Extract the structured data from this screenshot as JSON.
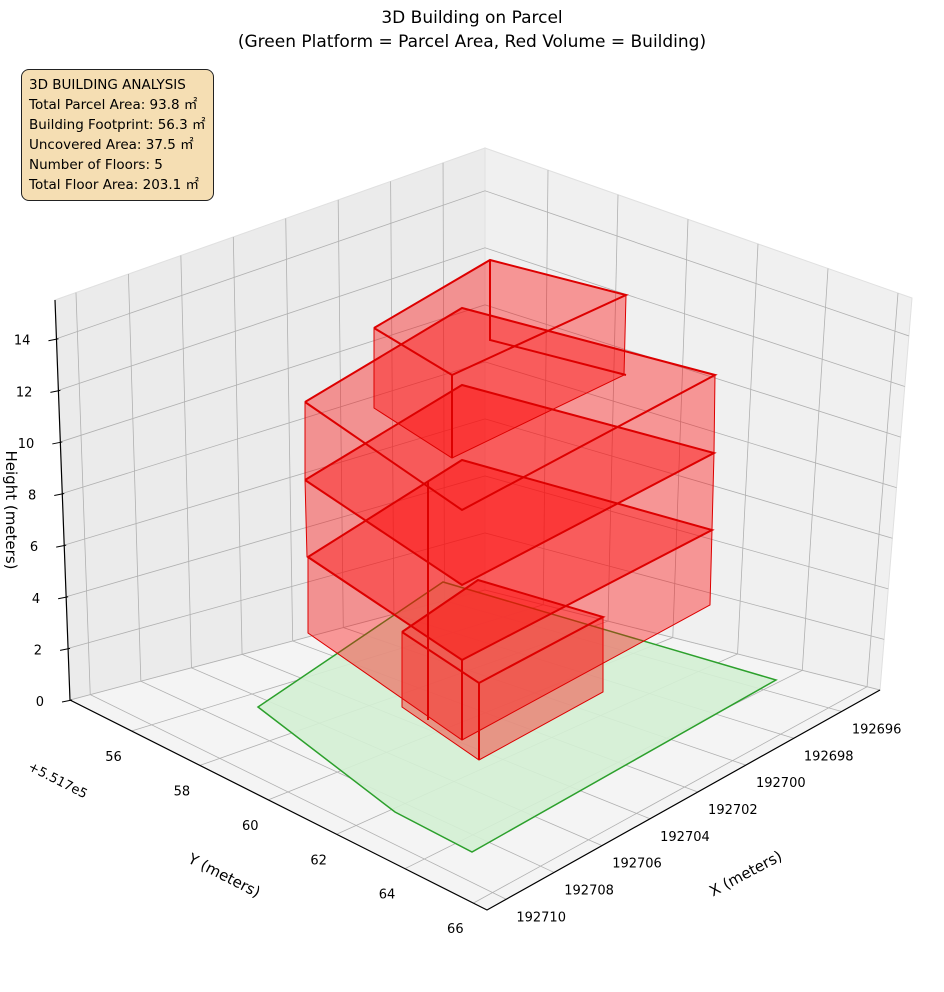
{
  "chart_data": {
    "type": "3d-polygon",
    "title": "3D Building on Parcel",
    "subtitle": "(Green Platform = Parcel Area, Red Volume = Building)",
    "xlabel": "X (meters)",
    "ylabel": "Y (meters)",
    "zlabel": "Height (meters)",
    "y_offset_label": "+5.517e5",
    "x_ticks": [
      "192696",
      "192698",
      "192700",
      "192702",
      "192704",
      "192706",
      "192708",
      "192710"
    ],
    "y_ticks": [
      "56",
      "58",
      "60",
      "62",
      "64",
      "66"
    ],
    "z_ticks": [
      "0",
      "2",
      "4",
      "6",
      "8",
      "10",
      "12",
      "14"
    ],
    "zlim": [
      0,
      15.5
    ],
    "series": [
      {
        "name": "Parcel Area",
        "color": "#2ca02c",
        "fill": "#d4f0d4"
      },
      {
        "name": "Building",
        "color": "#ff0000",
        "floors": 5
      }
    ],
    "info_box": {
      "heading": "3D BUILDING ANALYSIS",
      "lines": [
        "Total Parcel Area: 93.8 ㎡",
        "Building Footprint: 56.3 ㎡",
        "Uncovered Area: 37.5 ㎡",
        "Number of Floors: 5",
        "Total Floor Area: 203.1 ㎡"
      ]
    }
  }
}
